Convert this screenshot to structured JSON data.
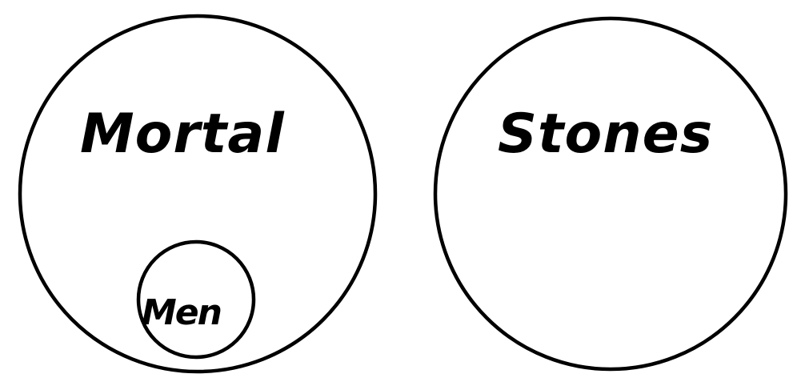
{
  "diagram": {
    "sets": [
      {
        "label": "Mortal"
      },
      {
        "label": "Stones"
      },
      {
        "label": "Men"
      }
    ]
  }
}
